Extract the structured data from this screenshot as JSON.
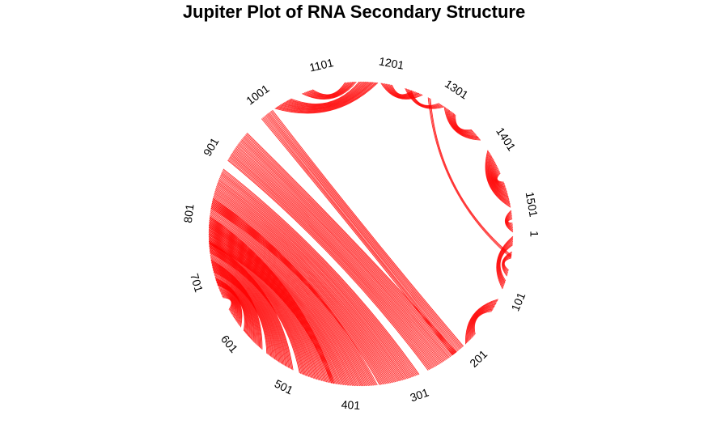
{
  "chart_data": {
    "type": "arc",
    "title": "Jupiter Plot of RNA Secondary Structure",
    "sequence_length": 1542,
    "tick_labels": [
      "1",
      "101",
      "201",
      "301",
      "401",
      "501",
      "601",
      "701",
      "801",
      "901",
      "1001",
      "1101",
      "1201",
      "1301",
      "1401",
      "1501"
    ],
    "tick_positions": [
      1,
      101,
      201,
      301,
      401,
      501,
      601,
      701,
      801,
      901,
      1001,
      1101,
      1201,
      1301,
      1401,
      1501
    ],
    "arc_color": "#ff0000",
    "helices": [
      {
        "i": 5,
        "j": 92,
        "n": 8
      },
      {
        "i": 30,
        "j": 70,
        "n": 6
      },
      {
        "i": 110,
        "j": 200,
        "n": 12
      },
      {
        "i": 205,
        "j": 1005,
        "n": 12
      },
      {
        "i": 220,
        "j": 950,
        "n": 28
      },
      {
        "i": 290,
        "j": 880,
        "n": 34
      },
      {
        "i": 360,
        "j": 830,
        "n": 38
      },
      {
        "i": 430,
        "j": 800,
        "n": 30
      },
      {
        "i": 500,
        "j": 760,
        "n": 26
      },
      {
        "i": 560,
        "j": 730,
        "n": 22
      },
      {
        "i": 610,
        "j": 700,
        "n": 18
      },
      {
        "i": 1010,
        "j": 1185,
        "n": 16
      },
      {
        "i": 1060,
        "j": 1150,
        "n": 10
      },
      {
        "i": 1190,
        "j": 1260,
        "n": 10
      },
      {
        "i": 1230,
        "j": 1300,
        "n": 6
      },
      {
        "i": 1270,
        "j": 40,
        "n": 3
      },
      {
        "i": 1300,
        "j": 1380,
        "n": 12
      },
      {
        "i": 1400,
        "j": 1500,
        "n": 22
      },
      {
        "i": 1505,
        "j": 1540,
        "n": 8
      }
    ]
  }
}
